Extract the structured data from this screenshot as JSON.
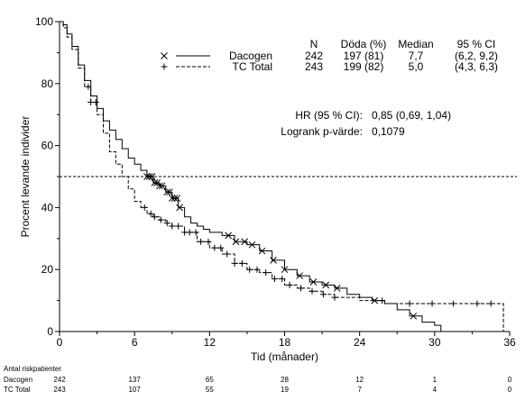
{
  "chart_data": {
    "type": "line",
    "subtype": "kaplan-meier",
    "xlabel": "Tid (månader)",
    "ylabel": "Procent levande individer",
    "xlim": [
      0,
      36
    ],
    "ylim": [
      0,
      100
    ],
    "xticks": [
      0,
      6,
      12,
      18,
      24,
      30,
      36
    ],
    "yticks": [
      0,
      20,
      40,
      60,
      80,
      100
    ],
    "reference_line_y": 50,
    "table_header": {
      "n": "N",
      "deaths": "Döda (%)",
      "median": "Median",
      "ci": "95 % CI"
    },
    "series": [
      {
        "name": "Dacogen",
        "marker": "×",
        "line_style": "solid",
        "n": "242",
        "deaths": "197 (81)",
        "median": "7,7",
        "ci": "(6,2, 9,2)",
        "x": [
          0,
          0.3,
          0.6,
          1,
          1.5,
          2,
          2.5,
          3,
          3.5,
          4,
          4.5,
          5,
          5.5,
          6,
          6.5,
          7,
          7.5,
          8,
          8.5,
          9,
          9.5,
          10,
          10.5,
          11,
          11.5,
          12,
          13,
          14,
          15,
          16,
          17,
          18,
          19,
          20,
          21,
          22,
          23,
          24,
          25,
          26,
          27,
          28,
          29,
          30,
          30.5
        ],
        "y": [
          100,
          99,
          96,
          92,
          86,
          81,
          76,
          72,
          68,
          65,
          62,
          59,
          56,
          54,
          52,
          50,
          48,
          47,
          45,
          43,
          40,
          37,
          35,
          34,
          33,
          32,
          31,
          29,
          28,
          26,
          23,
          20,
          18,
          16,
          15,
          14,
          12,
          11,
          10,
          9,
          7,
          5,
          3,
          2,
          0
        ],
        "censor_x": [
          7,
          7.2,
          7.4,
          7.6,
          7.8,
          8,
          8.2,
          8.6,
          8.8,
          9,
          9.2,
          9.4,
          9.6,
          13.5,
          14.1,
          14.8,
          15.4,
          16.2,
          17.1,
          18,
          19.2,
          20.3,
          21.3,
          22.2,
          25.2,
          28.3
        ],
        "risk": [
          "242",
          "137",
          "65",
          "28",
          "12",
          "1",
          "0"
        ]
      },
      {
        "name": "TC Total",
        "marker": "+",
        "line_style": "dashed",
        "n": "243",
        "deaths": "199 (82)",
        "median": "5,0",
        "ci": "(4,3, 6,3)",
        "x": [
          0,
          0.3,
          0.6,
          1,
          1.5,
          2,
          2.5,
          3,
          3.5,
          4,
          4.5,
          5,
          5.5,
          6,
          6.5,
          7,
          7.5,
          8,
          8.5,
          9,
          10,
          11,
          12,
          13,
          14,
          15,
          16,
          17,
          18,
          19,
          20,
          21,
          22,
          23,
          24,
          25,
          26,
          30,
          33,
          35.5,
          35.5
        ],
        "y": [
          100,
          98,
          95,
          91,
          85,
          79,
          74,
          70,
          64,
          58,
          54,
          50,
          46,
          42,
          40,
          38,
          37,
          36,
          35,
          34,
          32,
          29,
          27,
          25,
          22,
          20,
          19,
          17,
          15,
          14,
          13,
          12,
          11,
          11,
          10,
          10,
          9,
          9,
          9,
          9,
          0
        ],
        "censor_x": [
          2.3,
          2.5,
          2.9,
          6.8,
          7.3,
          7.6,
          8.1,
          8.6,
          9,
          9.5,
          10,
          10.4,
          10.9,
          11.3,
          11.9,
          12.4,
          12.9,
          13.4,
          14,
          14.6,
          15.2,
          15.8,
          16.5,
          17.2,
          17.8,
          18.4,
          19.3,
          20.2,
          21.1,
          22,
          25.8,
          28,
          29.8,
          31.5,
          33.4,
          34.5
        ],
        "risk": [
          "243",
          "107",
          "55",
          "19",
          "7",
          "4",
          "0"
        ]
      }
    ],
    "stats": [
      {
        "label": "HR (95 % CI):",
        "value": "0,85 (0,69, 1,04)"
      },
      {
        "label": "Logrank p-värde:",
        "value": "0,1079"
      }
    ],
    "risk_table": {
      "title": "Antal riskpatienter",
      "times": [
        0,
        6,
        12,
        18,
        24,
        30,
        36
      ]
    }
  }
}
